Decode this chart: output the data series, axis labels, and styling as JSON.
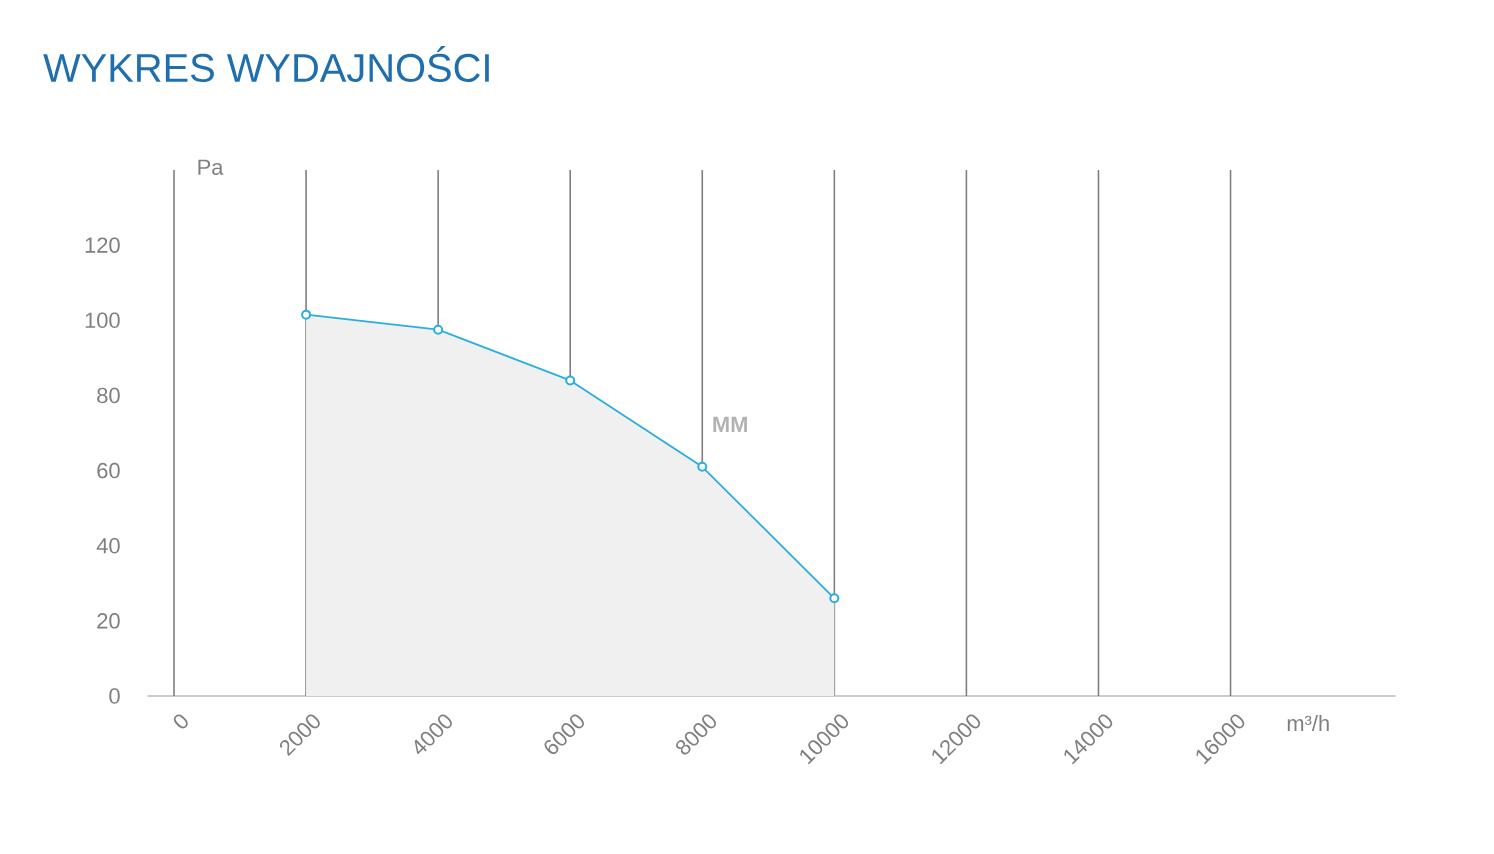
{
  "chart_data": {
    "type": "area",
    "title": "WYKRES WYDAJNOŚCI",
    "xlabel": "m³/h",
    "ylabel": "Pa",
    "x": [
      2000,
      4000,
      6000,
      8000,
      10000
    ],
    "series": [
      {
        "name": "MM",
        "color": "#29aee0",
        "values": [
          101.5,
          97.5,
          84,
          61,
          26
        ]
      }
    ],
    "xlim": [
      -400,
      18500
    ],
    "ylim": [
      0,
      140
    ],
    "xticks": [
      0,
      2000,
      4000,
      6000,
      8000,
      10000,
      12000,
      14000,
      16000
    ],
    "yticks": [
      0,
      20,
      40,
      60,
      80,
      100,
      120
    ],
    "grid": "x",
    "marker": "circle",
    "legend": false
  }
}
